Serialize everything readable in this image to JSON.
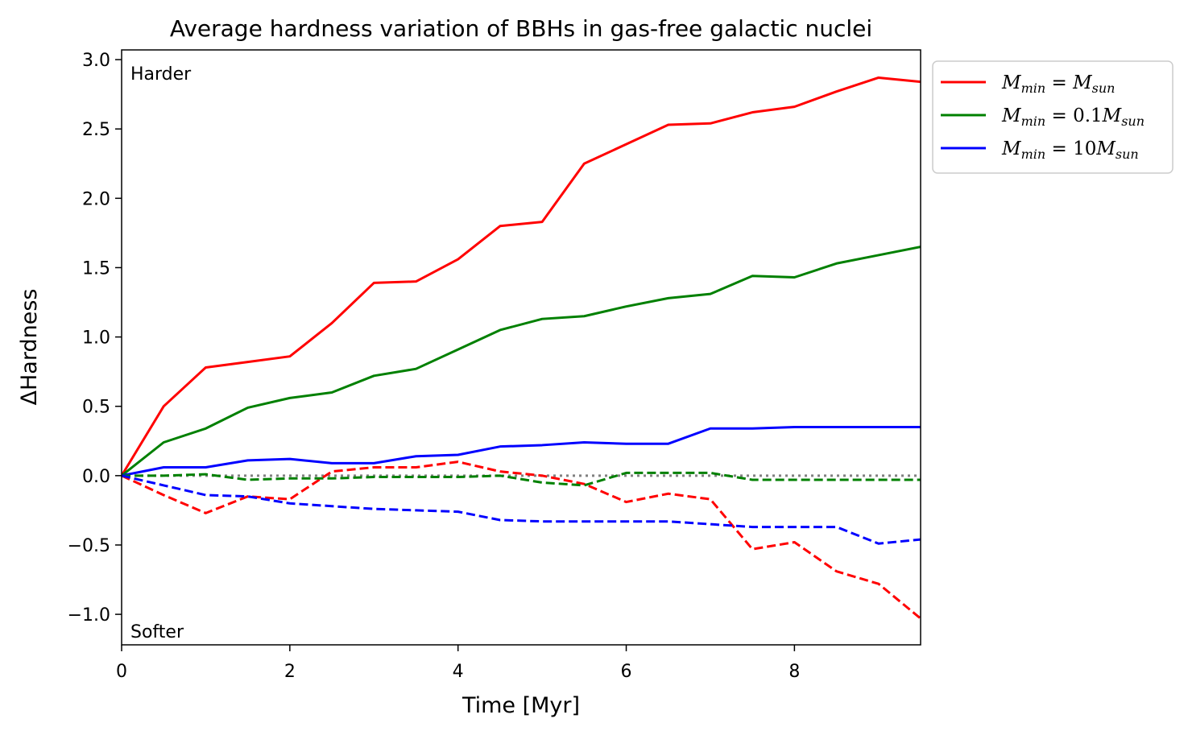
{
  "chart_data": {
    "type": "line",
    "title": "Average hardness variation of BBHs in gas-free galactic nuclei",
    "xlabel": "Time [Myr]",
    "ylabel": "ΔHardness",
    "xlim": [
      0,
      9.5
    ],
    "ylim": [
      -1.22,
      3.07
    ],
    "xticks": [
      0,
      2,
      4,
      6,
      8
    ],
    "xtick_labels": [
      "0",
      "2",
      "4",
      "6",
      "8"
    ],
    "yticks": [
      -1.0,
      -0.5,
      0.0,
      0.5,
      1.0,
      1.5,
      2.0,
      2.5,
      3.0
    ],
    "ytick_labels": [
      "−1.0",
      "−0.5",
      "0.0",
      "0.5",
      "1.0",
      "1.5",
      "2.0",
      "2.5",
      "3.0"
    ],
    "grid": false,
    "legend_position": "outside-top-right",
    "annotations": {
      "top_left": "Harder",
      "bottom_left": "Softer"
    },
    "x": [
      0,
      0.5,
      1,
      1.5,
      2,
      2.5,
      3,
      3.5,
      4,
      4.5,
      5,
      5.5,
      6,
      6.5,
      7,
      7.5,
      8,
      8.5,
      9,
      9.5
    ],
    "legend": [
      {
        "base": "M",
        "sub": "min",
        "eq": " = ",
        "coef": "",
        "tail_base": "M",
        "tail_sub": "sun",
        "color": "#ff0000"
      },
      {
        "base": "M",
        "sub": "min",
        "eq": " = ",
        "coef": "0.1",
        "tail_base": "M",
        "tail_sub": "sun",
        "color": "#008000"
      },
      {
        "base": "M",
        "sub": "min",
        "eq": " = ",
        "coef": "10",
        "tail_base": "M",
        "tail_sub": "sun",
        "color": "#0000ff"
      }
    ],
    "series": [
      {
        "color": "#ff0000",
        "style": "solid",
        "values": [
          0,
          0.5,
          0.78,
          0.82,
          0.86,
          1.1,
          1.39,
          1.4,
          1.56,
          1.8,
          1.83,
          2.25,
          2.39,
          2.53,
          2.54,
          2.62,
          2.66,
          2.77,
          2.87,
          2.84
        ]
      },
      {
        "color": "#008000",
        "style": "solid",
        "values": [
          0,
          0.24,
          0.34,
          0.49,
          0.56,
          0.6,
          0.72,
          0.77,
          0.91,
          1.05,
          1.13,
          1.15,
          1.22,
          1.28,
          1.31,
          1.44,
          1.43,
          1.53,
          1.59,
          1.65
        ]
      },
      {
        "color": "#0000ff",
        "style": "solid",
        "values": [
          0,
          0.06,
          0.06,
          0.11,
          0.12,
          0.09,
          0.09,
          0.14,
          0.15,
          0.21,
          0.22,
          0.24,
          0.23,
          0.23,
          0.34,
          0.34,
          0.35,
          0.35,
          0.35,
          0.35
        ]
      },
      {
        "color": "#ff0000",
        "style": "dashed",
        "values": [
          0,
          -0.14,
          -0.27,
          -0.15,
          -0.17,
          0.03,
          0.06,
          0.06,
          0.1,
          0.03,
          0.0,
          -0.06,
          -0.19,
          -0.13,
          -0.17,
          -0.53,
          -0.48,
          -0.69,
          -0.78,
          -1.03
        ]
      },
      {
        "color": "#008000",
        "style": "dashed",
        "values": [
          0,
          0.0,
          0.01,
          -0.03,
          -0.02,
          -0.02,
          -0.01,
          -0.01,
          -0.01,
          0.0,
          -0.05,
          -0.07,
          0.02,
          0.02,
          0.02,
          -0.03,
          -0.03,
          -0.03,
          -0.03,
          -0.03
        ]
      },
      {
        "color": "#0000ff",
        "style": "dashed",
        "values": [
          0,
          -0.07,
          -0.14,
          -0.15,
          -0.2,
          -0.22,
          -0.24,
          -0.25,
          -0.26,
          -0.32,
          -0.33,
          -0.33,
          -0.33,
          -0.33,
          -0.35,
          -0.37,
          -0.37,
          -0.37,
          -0.49,
          -0.46
        ]
      },
      {
        "color": "#808080",
        "style": "dotted",
        "values": [
          0,
          0,
          0,
          0,
          0,
          0,
          0,
          0,
          0,
          0,
          0,
          0,
          0,
          0,
          0,
          0,
          0,
          0,
          0,
          0
        ]
      }
    ]
  }
}
